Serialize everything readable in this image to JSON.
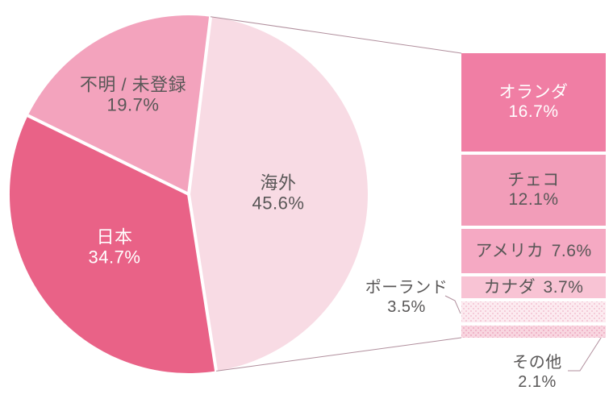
{
  "chart_data": {
    "type": "pie",
    "variant": "pie-of-bar-breakdown",
    "title": "",
    "legend": "none",
    "background": "#FFFFFF",
    "label_color": "#595757",
    "connector_color": "#B18F9D",
    "pie": {
      "total": 100.0,
      "slices": [
        {
          "label": "海外",
          "value": 45.6,
          "display": "45.6%",
          "color": "#F8DBE4",
          "text_color": "#595757"
        },
        {
          "label": "日本",
          "value": 34.7,
          "display": "34.7%",
          "color": "#E96287",
          "text_color": "#FFFFFF"
        },
        {
          "label": "不明 / 未登録",
          "value": 19.7,
          "display": "19.7%",
          "color": "#F3A3BD",
          "text_color": "#595757"
        }
      ]
    },
    "breakdown": {
      "parent_label": "海外",
      "bars": [
        {
          "label": "オランダ",
          "value": 16.7,
          "display": "16.7%",
          "color": "#F07EA4",
          "text_color": "#FFFFFF",
          "pattern": false,
          "label_position": "inside-two-line"
        },
        {
          "label": "チェコ",
          "value": 12.1,
          "display": "12.1%",
          "color": "#F29DB9",
          "text_color": "#595757",
          "pattern": false,
          "label_position": "inside-two-line"
        },
        {
          "label": "アメリカ",
          "value": 7.6,
          "display": "7.6%",
          "color": "#F5A9C3",
          "text_color": "#595757",
          "pattern": false,
          "label_position": "inside-one-line"
        },
        {
          "label": "カナダ",
          "value": 3.7,
          "display": "3.7%",
          "color": "#F8C3D4",
          "text_color": "#595757",
          "pattern": false,
          "label_position": "inside-one-line"
        },
        {
          "label": "ポーランド",
          "value": 3.5,
          "display": "3.5%",
          "color": "#FCEBF0",
          "dot_color": "#F5CBD9",
          "text_color": "#595757",
          "pattern": true,
          "label_position": "outside-left"
        },
        {
          "label": "その他",
          "value": 2.1,
          "display": "2.1%",
          "color": "#F8D6E0",
          "dot_color": "#F0B4C8",
          "text_color": "#595757",
          "pattern": true,
          "label_position": "outside-bottom"
        }
      ]
    }
  }
}
